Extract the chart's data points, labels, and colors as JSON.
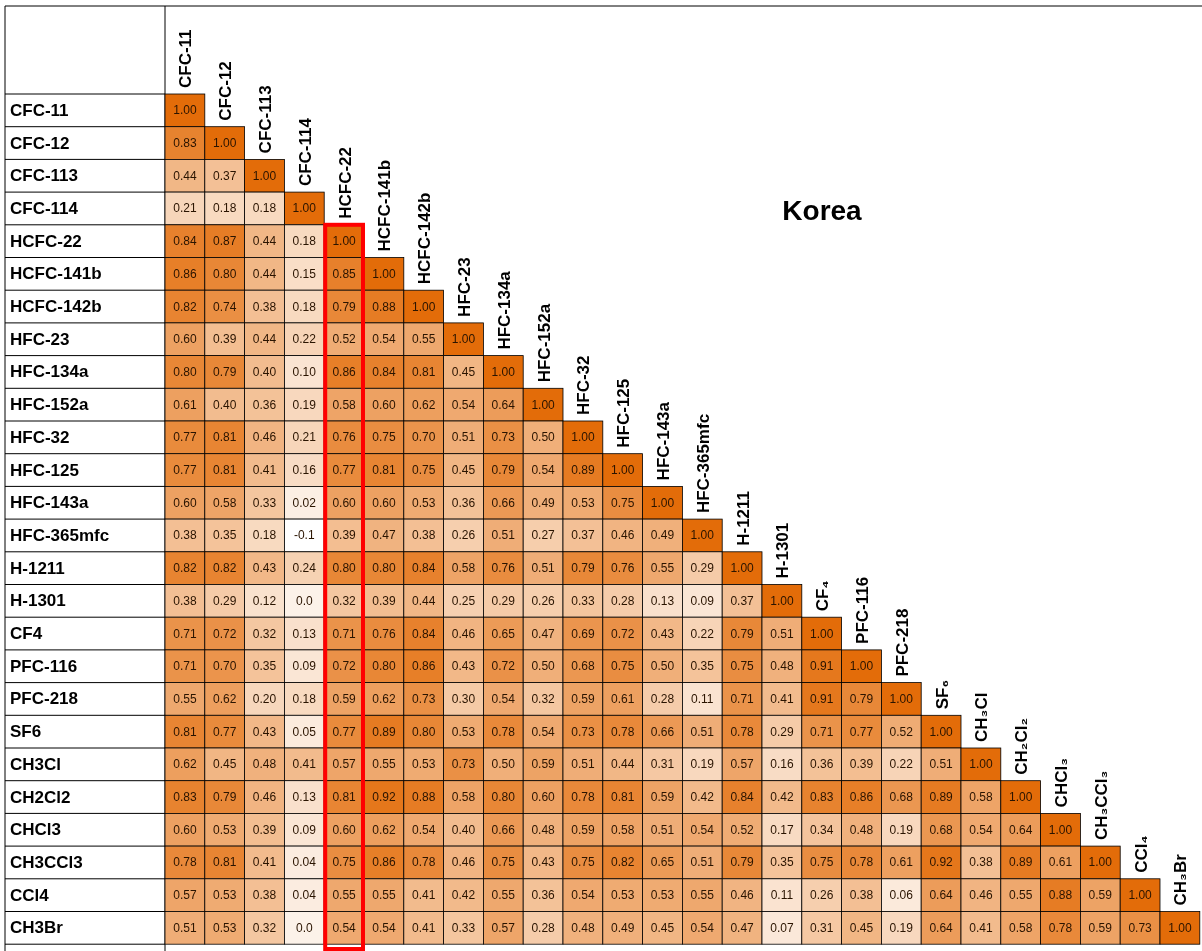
{
  "chart_data": {
    "type": "heatmap",
    "title": "Korea",
    "color": "#e36c09",
    "categories": [
      "CFC-11",
      "CFC-12",
      "CFC-113",
      "CFC-114",
      "HCFC-22",
      "HCFC-141b",
      "HCFC-142b",
      "HFC-23",
      "HFC-134a",
      "HFC-152a",
      "HFC-32",
      "HFC-125",
      "HFC-143a",
      "HFC-365mfc",
      "H-1211",
      "H-1301",
      "CF₄",
      "PFC-116",
      "PFC-218",
      "SF₆",
      "CH₃Cl",
      "CH₂Cl₂",
      "CHCl₃",
      "CH₃CCl₃",
      "CCl₄",
      "CH₃Br"
    ],
    "y_categories": [
      "CFC-11",
      "CFC-12",
      "CFC-113",
      "CFC-114",
      "HCFC-22",
      "HCFC-141b",
      "HCFC-142b",
      "HFC-23",
      "HFC-134a",
      "HFC-152a",
      "HFC-32",
      "HFC-125",
      "HFC-143a",
      "HFC-365mfc",
      "H-1211",
      "H-1301",
      "CF4",
      "PFC-116",
      "PFC-218",
      "SF6",
      "CH3Cl",
      "CH2Cl2",
      "CHCl3",
      "CH3CCl3",
      "CCl4",
      "CH3Br"
    ],
    "cells": [
      [
        1.0,
        null,
        null,
        null,
        null,
        null,
        null,
        null,
        null,
        null,
        null,
        null,
        null,
        null,
        null,
        null,
        null,
        null,
        null,
        null,
        null,
        null,
        null,
        null,
        null,
        null
      ],
      [
        0.83,
        1.0,
        null,
        null,
        null,
        null,
        null,
        null,
        null,
        null,
        null,
        null,
        null,
        null,
        null,
        null,
        null,
        null,
        null,
        null,
        null,
        null,
        null,
        null,
        null,
        null
      ],
      [
        0.44,
        0.37,
        1.0,
        null,
        null,
        null,
        null,
        null,
        null,
        null,
        null,
        null,
        null,
        null,
        null,
        null,
        null,
        null,
        null,
        null,
        null,
        null,
        null,
        null,
        null,
        null
      ],
      [
        0.21,
        0.18,
        0.18,
        1.0,
        null,
        null,
        null,
        null,
        null,
        null,
        null,
        null,
        null,
        null,
        null,
        null,
        null,
        null,
        null,
        null,
        null,
        null,
        null,
        null,
        null,
        null
      ],
      [
        0.84,
        0.87,
        0.44,
        0.18,
        1.0,
        null,
        null,
        null,
        null,
        null,
        null,
        null,
        null,
        null,
        null,
        null,
        null,
        null,
        null,
        null,
        null,
        null,
        null,
        null,
        null,
        null
      ],
      [
        0.86,
        0.8,
        0.44,
        0.15,
        0.85,
        1.0,
        null,
        null,
        null,
        null,
        null,
        null,
        null,
        null,
        null,
        null,
        null,
        null,
        null,
        null,
        null,
        null,
        null,
        null,
        null,
        null
      ],
      [
        0.82,
        0.74,
        0.38,
        0.18,
        0.79,
        0.88,
        1.0,
        null,
        null,
        null,
        null,
        null,
        null,
        null,
        null,
        null,
        null,
        null,
        null,
        null,
        null,
        null,
        null,
        null,
        null,
        null
      ],
      [
        0.6,
        0.39,
        0.44,
        0.22,
        0.52,
        0.54,
        0.55,
        1.0,
        null,
        null,
        null,
        null,
        null,
        null,
        null,
        null,
        null,
        null,
        null,
        null,
        null,
        null,
        null,
        null,
        null,
        null
      ],
      [
        0.8,
        0.79,
        0.4,
        0.1,
        0.86,
        0.84,
        0.81,
        0.45,
        1.0,
        null,
        null,
        null,
        null,
        null,
        null,
        null,
        null,
        null,
        null,
        null,
        null,
        null,
        null,
        null,
        null,
        null
      ],
      [
        0.61,
        0.4,
        0.36,
        0.19,
        0.58,
        0.6,
        0.62,
        0.54,
        0.64,
        1.0,
        null,
        null,
        null,
        null,
        null,
        null,
        null,
        null,
        null,
        null,
        null,
        null,
        null,
        null,
        null,
        null
      ],
      [
        0.77,
        0.81,
        0.46,
        0.21,
        0.76,
        0.75,
        0.7,
        0.51,
        0.73,
        0.5,
        1.0,
        null,
        null,
        null,
        null,
        null,
        null,
        null,
        null,
        null,
        null,
        null,
        null,
        null,
        null,
        null
      ],
      [
        0.77,
        0.81,
        0.41,
        0.16,
        0.77,
        0.81,
        0.75,
        0.45,
        0.79,
        0.54,
        0.89,
        1.0,
        null,
        null,
        null,
        null,
        null,
        null,
        null,
        null,
        null,
        null,
        null,
        null,
        null,
        null
      ],
      [
        0.6,
        0.58,
        0.33,
        0.02,
        0.6,
        0.6,
        0.53,
        0.36,
        0.66,
        0.49,
        0.53,
        0.75,
        1.0,
        null,
        null,
        null,
        null,
        null,
        null,
        null,
        null,
        null,
        null,
        null,
        null,
        null
      ],
      [
        0.38,
        0.35,
        0.18,
        -0.1,
        0.39,
        0.47,
        0.38,
        0.26,
        0.51,
        0.27,
        0.37,
        0.46,
        0.49,
        1.0,
        null,
        null,
        null,
        null,
        null,
        null,
        null,
        null,
        null,
        null,
        null,
        null
      ],
      [
        0.82,
        0.82,
        0.43,
        0.24,
        0.8,
        0.8,
        0.84,
        0.58,
        0.76,
        0.51,
        0.79,
        0.76,
        0.55,
        0.29,
        1.0,
        null,
        null,
        null,
        null,
        null,
        null,
        null,
        null,
        null,
        null,
        null
      ],
      [
        0.38,
        0.29,
        0.12,
        0.0,
        0.32,
        0.39,
        0.44,
        0.25,
        0.29,
        0.26,
        0.33,
        0.28,
        0.13,
        0.09,
        0.37,
        1.0,
        null,
        null,
        null,
        null,
        null,
        null,
        null,
        null,
        null,
        null
      ],
      [
        0.71,
        0.72,
        0.32,
        0.13,
        0.71,
        0.76,
        0.84,
        0.46,
        0.65,
        0.47,
        0.69,
        0.72,
        0.43,
        0.22,
        0.79,
        0.51,
        1.0,
        null,
        null,
        null,
        null,
        null,
        null,
        null,
        null,
        null
      ],
      [
        0.71,
        0.7,
        0.35,
        0.09,
        0.72,
        0.8,
        0.86,
        0.43,
        0.72,
        0.5,
        0.68,
        0.75,
        0.5,
        0.35,
        0.75,
        0.48,
        0.91,
        1.0,
        null,
        null,
        null,
        null,
        null,
        null,
        null,
        null
      ],
      [
        0.55,
        0.62,
        0.2,
        0.18,
        0.59,
        0.62,
        0.73,
        0.3,
        0.54,
        0.32,
        0.59,
        0.61,
        0.28,
        0.11,
        0.71,
        0.41,
        0.91,
        0.79,
        1.0,
        null,
        null,
        null,
        null,
        null,
        null,
        null
      ],
      [
        0.81,
        0.77,
        0.43,
        0.05,
        0.77,
        0.89,
        0.8,
        0.53,
        0.78,
        0.54,
        0.73,
        0.78,
        0.66,
        0.51,
        0.78,
        0.29,
        0.71,
        0.77,
        0.52,
        1.0,
        null,
        null,
        null,
        null,
        null,
        null
      ],
      [
        0.62,
        0.45,
        0.48,
        0.41,
        0.57,
        0.55,
        0.53,
        0.73,
        0.5,
        0.59,
        0.51,
        0.44,
        0.31,
        0.19,
        0.57,
        0.16,
        0.36,
        0.39,
        0.22,
        0.51,
        1.0,
        null,
        null,
        null,
        null,
        null
      ],
      [
        0.83,
        0.79,
        0.46,
        0.13,
        0.81,
        0.92,
        0.88,
        0.58,
        0.8,
        0.6,
        0.78,
        0.81,
        0.59,
        0.42,
        0.84,
        0.42,
        0.83,
        0.86,
        0.68,
        0.89,
        0.58,
        1.0,
        null,
        null,
        null,
        null
      ],
      [
        0.6,
        0.53,
        0.39,
        0.09,
        0.6,
        0.62,
        0.54,
        0.4,
        0.66,
        0.48,
        0.59,
        0.58,
        0.51,
        0.54,
        0.52,
        0.17,
        0.34,
        0.48,
        0.19,
        0.68,
        0.54,
        0.64,
        1.0,
        null,
        null,
        null
      ],
      [
        0.78,
        0.81,
        0.41,
        0.04,
        0.75,
        0.86,
        0.78,
        0.46,
        0.75,
        0.43,
        0.75,
        0.82,
        0.65,
        0.51,
        0.79,
        0.35,
        0.75,
        0.78,
        0.61,
        0.92,
        0.38,
        0.89,
        0.61,
        1.0,
        null,
        null
      ],
      [
        0.57,
        0.53,
        0.38,
        0.04,
        0.55,
        0.55,
        0.41,
        0.42,
        0.55,
        0.36,
        0.54,
        0.53,
        0.53,
        0.55,
        0.46,
        0.11,
        0.26,
        0.38,
        0.06,
        0.64,
        0.46,
        0.55,
        0.88,
        0.59,
        1.0,
        null
      ],
      [
        0.51,
        0.53,
        0.32,
        0.0,
        0.54,
        0.54,
        0.41,
        0.33,
        0.57,
        0.28,
        0.48,
        0.49,
        0.45,
        0.54,
        0.47,
        0.07,
        0.31,
        0.45,
        0.19,
        0.64,
        0.41,
        0.58,
        0.78,
        0.59,
        0.73,
        1.0
      ]
    ],
    "cell_labels": [
      [
        "1.00",
        null,
        null,
        null,
        null,
        null,
        null,
        null,
        null,
        null,
        null,
        null,
        null,
        null,
        null,
        null,
        null,
        null,
        null,
        null,
        null,
        null,
        null,
        null,
        null,
        null
      ],
      [
        "0.83",
        "1.00",
        null,
        null,
        null,
        null,
        null,
        null,
        null,
        null,
        null,
        null,
        null,
        null,
        null,
        null,
        null,
        null,
        null,
        null,
        null,
        null,
        null,
        null,
        null,
        null
      ],
      [
        "0.44",
        "0.37",
        "1.00",
        null,
        null,
        null,
        null,
        null,
        null,
        null,
        null,
        null,
        null,
        null,
        null,
        null,
        null,
        null,
        null,
        null,
        null,
        null,
        null,
        null,
        null,
        null
      ],
      [
        "0.21",
        "0.18",
        "0.18",
        "1.00",
        null,
        null,
        null,
        null,
        null,
        null,
        null,
        null,
        null,
        null,
        null,
        null,
        null,
        null,
        null,
        null,
        null,
        null,
        null,
        null,
        null,
        null
      ],
      [
        "0.84",
        "0.87",
        "0.44",
        "0.18",
        "1.00",
        null,
        null,
        null,
        null,
        null,
        null,
        null,
        null,
        null,
        null,
        null,
        null,
        null,
        null,
        null,
        null,
        null,
        null,
        null,
        null,
        null
      ],
      [
        "0.86",
        "0.80",
        "0.44",
        "0.15",
        "0.85",
        "1.00",
        null,
        null,
        null,
        null,
        null,
        null,
        null,
        null,
        null,
        null,
        null,
        null,
        null,
        null,
        null,
        null,
        null,
        null,
        null,
        null
      ],
      [
        "0.82",
        "0.74",
        "0.38",
        "0.18",
        "0.79",
        "0.88",
        "1.00",
        null,
        null,
        null,
        null,
        null,
        null,
        null,
        null,
        null,
        null,
        null,
        null,
        null,
        null,
        null,
        null,
        null,
        null,
        null
      ],
      [
        "0.60",
        "0.39",
        "0.44",
        "0.22",
        "0.52",
        "0.54",
        "0.55",
        "1.00",
        null,
        null,
        null,
        null,
        null,
        null,
        null,
        null,
        null,
        null,
        null,
        null,
        null,
        null,
        null,
        null,
        null,
        null
      ],
      [
        "0.80",
        "0.79",
        "0.40",
        "0.10",
        "0.86",
        "0.84",
        "0.81",
        "0.45",
        "1.00",
        null,
        null,
        null,
        null,
        null,
        null,
        null,
        null,
        null,
        null,
        null,
        null,
        null,
        null,
        null,
        null,
        null
      ],
      [
        "0.61",
        "0.40",
        "0.36",
        "0.19",
        "0.58",
        "0.60",
        "0.62",
        "0.54",
        "0.64",
        "1.00",
        null,
        null,
        null,
        null,
        null,
        null,
        null,
        null,
        null,
        null,
        null,
        null,
        null,
        null,
        null,
        null
      ],
      [
        "0.77",
        "0.81",
        "0.46",
        "0.21",
        "0.76",
        "0.75",
        "0.70",
        "0.51",
        "0.73",
        "0.50",
        "1.00",
        null,
        null,
        null,
        null,
        null,
        null,
        null,
        null,
        null,
        null,
        null,
        null,
        null,
        null,
        null
      ],
      [
        "0.77",
        "0.81",
        "0.41",
        "0.16",
        "0.77",
        "0.81",
        "0.75",
        "0.45",
        "0.79",
        "0.54",
        "0.89",
        "1.00",
        null,
        null,
        null,
        null,
        null,
        null,
        null,
        null,
        null,
        null,
        null,
        null,
        null,
        null
      ],
      [
        "0.60",
        "0.58",
        "0.33",
        "0.02",
        "0.60",
        "0.60",
        "0.53",
        "0.36",
        "0.66",
        "0.49",
        "0.53",
        "0.75",
        "1.00",
        null,
        null,
        null,
        null,
        null,
        null,
        null,
        null,
        null,
        null,
        null,
        null,
        null
      ],
      [
        "0.38",
        "0.35",
        "0.18",
        "-0.1",
        "0.39",
        "0.47",
        "0.38",
        "0.26",
        "0.51",
        "0.27",
        "0.37",
        "0.46",
        "0.49",
        "1.00",
        null,
        null,
        null,
        null,
        null,
        null,
        null,
        null,
        null,
        null,
        null,
        null
      ],
      [
        "0.82",
        "0.82",
        "0.43",
        "0.24",
        "0.80",
        "0.80",
        "0.84",
        "0.58",
        "0.76",
        "0.51",
        "0.79",
        "0.76",
        "0.55",
        "0.29",
        "1.00",
        null,
        null,
        null,
        null,
        null,
        null,
        null,
        null,
        null,
        null,
        null
      ],
      [
        "0.38",
        "0.29",
        "0.12",
        "0.0",
        "0.32",
        "0.39",
        "0.44",
        "0.25",
        "0.29",
        "0.26",
        "0.33",
        "0.28",
        "0.13",
        "0.09",
        "0.37",
        "1.00",
        null,
        null,
        null,
        null,
        null,
        null,
        null,
        null,
        null,
        null
      ],
      [
        "0.71",
        "0.72",
        "0.32",
        "0.13",
        "0.71",
        "0.76",
        "0.84",
        "0.46",
        "0.65",
        "0.47",
        "0.69",
        "0.72",
        "0.43",
        "0.22",
        "0.79",
        "0.51",
        "1.00",
        null,
        null,
        null,
        null,
        null,
        null,
        null,
        null,
        null
      ],
      [
        "0.71",
        "0.70",
        "0.35",
        "0.09",
        "0.72",
        "0.80",
        "0.86",
        "0.43",
        "0.72",
        "0.50",
        "0.68",
        "0.75",
        "0.50",
        "0.35",
        "0.75",
        "0.48",
        "0.91",
        "1.00",
        null,
        null,
        null,
        null,
        null,
        null,
        null,
        null
      ],
      [
        "0.55",
        "0.62",
        "0.20",
        "0.18",
        "0.59",
        "0.62",
        "0.73",
        "0.30",
        "0.54",
        "0.32",
        "0.59",
        "0.61",
        "0.28",
        "0.11",
        "0.71",
        "0.41",
        "0.91",
        "0.79",
        "1.00",
        null,
        null,
        null,
        null,
        null,
        null,
        null
      ],
      [
        "0.81",
        "0.77",
        "0.43",
        "0.05",
        "0.77",
        "0.89",
        "0.80",
        "0.53",
        "0.78",
        "0.54",
        "0.73",
        "0.78",
        "0.66",
        "0.51",
        "0.78",
        "0.29",
        "0.71",
        "0.77",
        "0.52",
        "1.00",
        null,
        null,
        null,
        null,
        null,
        null
      ],
      [
        "0.62",
        "0.45",
        "0.48",
        "0.41",
        "0.57",
        "0.55",
        "0.53",
        "0.73",
        "0.50",
        "0.59",
        "0.51",
        "0.44",
        "0.31",
        "0.19",
        "0.57",
        "0.16",
        "0.36",
        "0.39",
        "0.22",
        "0.51",
        "1.00",
        null,
        null,
        null,
        null,
        null
      ],
      [
        "0.83",
        "0.79",
        "0.46",
        "0.13",
        "0.81",
        "0.92",
        "0.88",
        "0.58",
        "0.80",
        "0.60",
        "0.78",
        "0.81",
        "0.59",
        "0.42",
        "0.84",
        "0.42",
        "0.83",
        "0.86",
        "0.68",
        "0.89",
        "0.58",
        "1.00",
        null,
        null,
        null,
        null
      ],
      [
        "0.60",
        "0.53",
        "0.39",
        "0.09",
        "0.60",
        "0.62",
        "0.54",
        "0.40",
        "0.66",
        "0.48",
        "0.59",
        "0.58",
        "0.51",
        "0.54",
        "0.52",
        "0.17",
        "0.34",
        "0.48",
        "0.19",
        "0.68",
        "0.54",
        "0.64",
        "1.00",
        null,
        null,
        null
      ],
      [
        "0.78",
        "0.81",
        "0.41",
        "0.04",
        "0.75",
        "0.86",
        "0.78",
        "0.46",
        "0.75",
        "0.43",
        "0.75",
        "0.82",
        "0.65",
        "0.51",
        "0.79",
        "0.35",
        "0.75",
        "0.78",
        "0.61",
        "0.92",
        "0.38",
        "0.89",
        "0.61",
        "1.00",
        null,
        null
      ],
      [
        "0.57",
        "0.53",
        "0.38",
        "0.04",
        "0.55",
        "0.55",
        "0.41",
        "0.42",
        "0.55",
        "0.36",
        "0.54",
        "0.53",
        "0.53",
        "0.55",
        "0.46",
        "0.11",
        "0.26",
        "0.38",
        "0.06",
        "0.64",
        "0.46",
        "0.55",
        "0.88",
        "0.59",
        "1.00",
        null
      ],
      [
        "0.51",
        "0.53",
        "0.32",
        "0.0",
        "0.54",
        "0.54",
        "0.41",
        "0.33",
        "0.57",
        "0.28",
        "0.48",
        "0.49",
        "0.45",
        "0.54",
        "0.47",
        "0.07",
        "0.31",
        "0.45",
        "0.19",
        "0.64",
        "0.41",
        "0.58",
        "0.78",
        "0.59",
        "0.73",
        "1.00"
      ]
    ]
  }
}
